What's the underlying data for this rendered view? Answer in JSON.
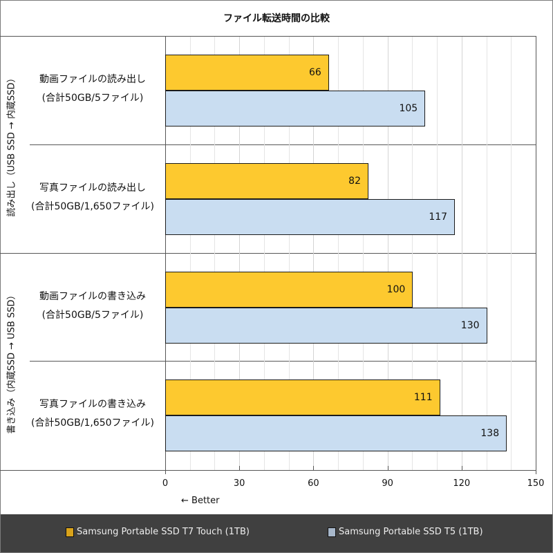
{
  "chart_data": {
    "type": "bar",
    "orientation": "horizontal",
    "title": "ファイル転送時間の比較",
    "xlabel": "← Better",
    "xlim": [
      0,
      150
    ],
    "xticks": [
      0,
      30,
      60,
      90,
      120,
      150
    ],
    "grid": true,
    "legend_position": "bottom",
    "groups": [
      {
        "label": "読み出し（USB SSD → 内蔵SSD）",
        "categories": [
          0,
          1
        ]
      },
      {
        "label": "書き込み（内蔵SSD → USB SSD）",
        "categories": [
          2,
          3
        ]
      }
    ],
    "categories": [
      {
        "line1": "動画ファイルの読み出し",
        "line2": "(合計50GB/5ファイル)"
      },
      {
        "line1": "写真ファイルの読み出し",
        "line2": "(合計50GB/1,650ファイル)"
      },
      {
        "line1": "動画ファイルの書き込み",
        "line2": "(合計50GB/5ファイル)"
      },
      {
        "line1": "写真ファイルの書き込み",
        "line2": "(合計50GB/1,650ファイル)"
      }
    ],
    "series": [
      {
        "name": "Samsung Portable SSD T7 Touch (1TB)",
        "color": "#fdc92f",
        "legend_color": "#d9a31b",
        "values": [
          66,
          82,
          100,
          111
        ]
      },
      {
        "name": "Samsung Portable SSD T5 (1TB)",
        "color": "#c9ddf1",
        "legend_color": "#a7b7ca",
        "values": [
          105,
          117,
          130,
          138
        ]
      }
    ]
  },
  "tick_labels": [
    "0",
    "30",
    "60",
    "90",
    "120",
    "150"
  ]
}
